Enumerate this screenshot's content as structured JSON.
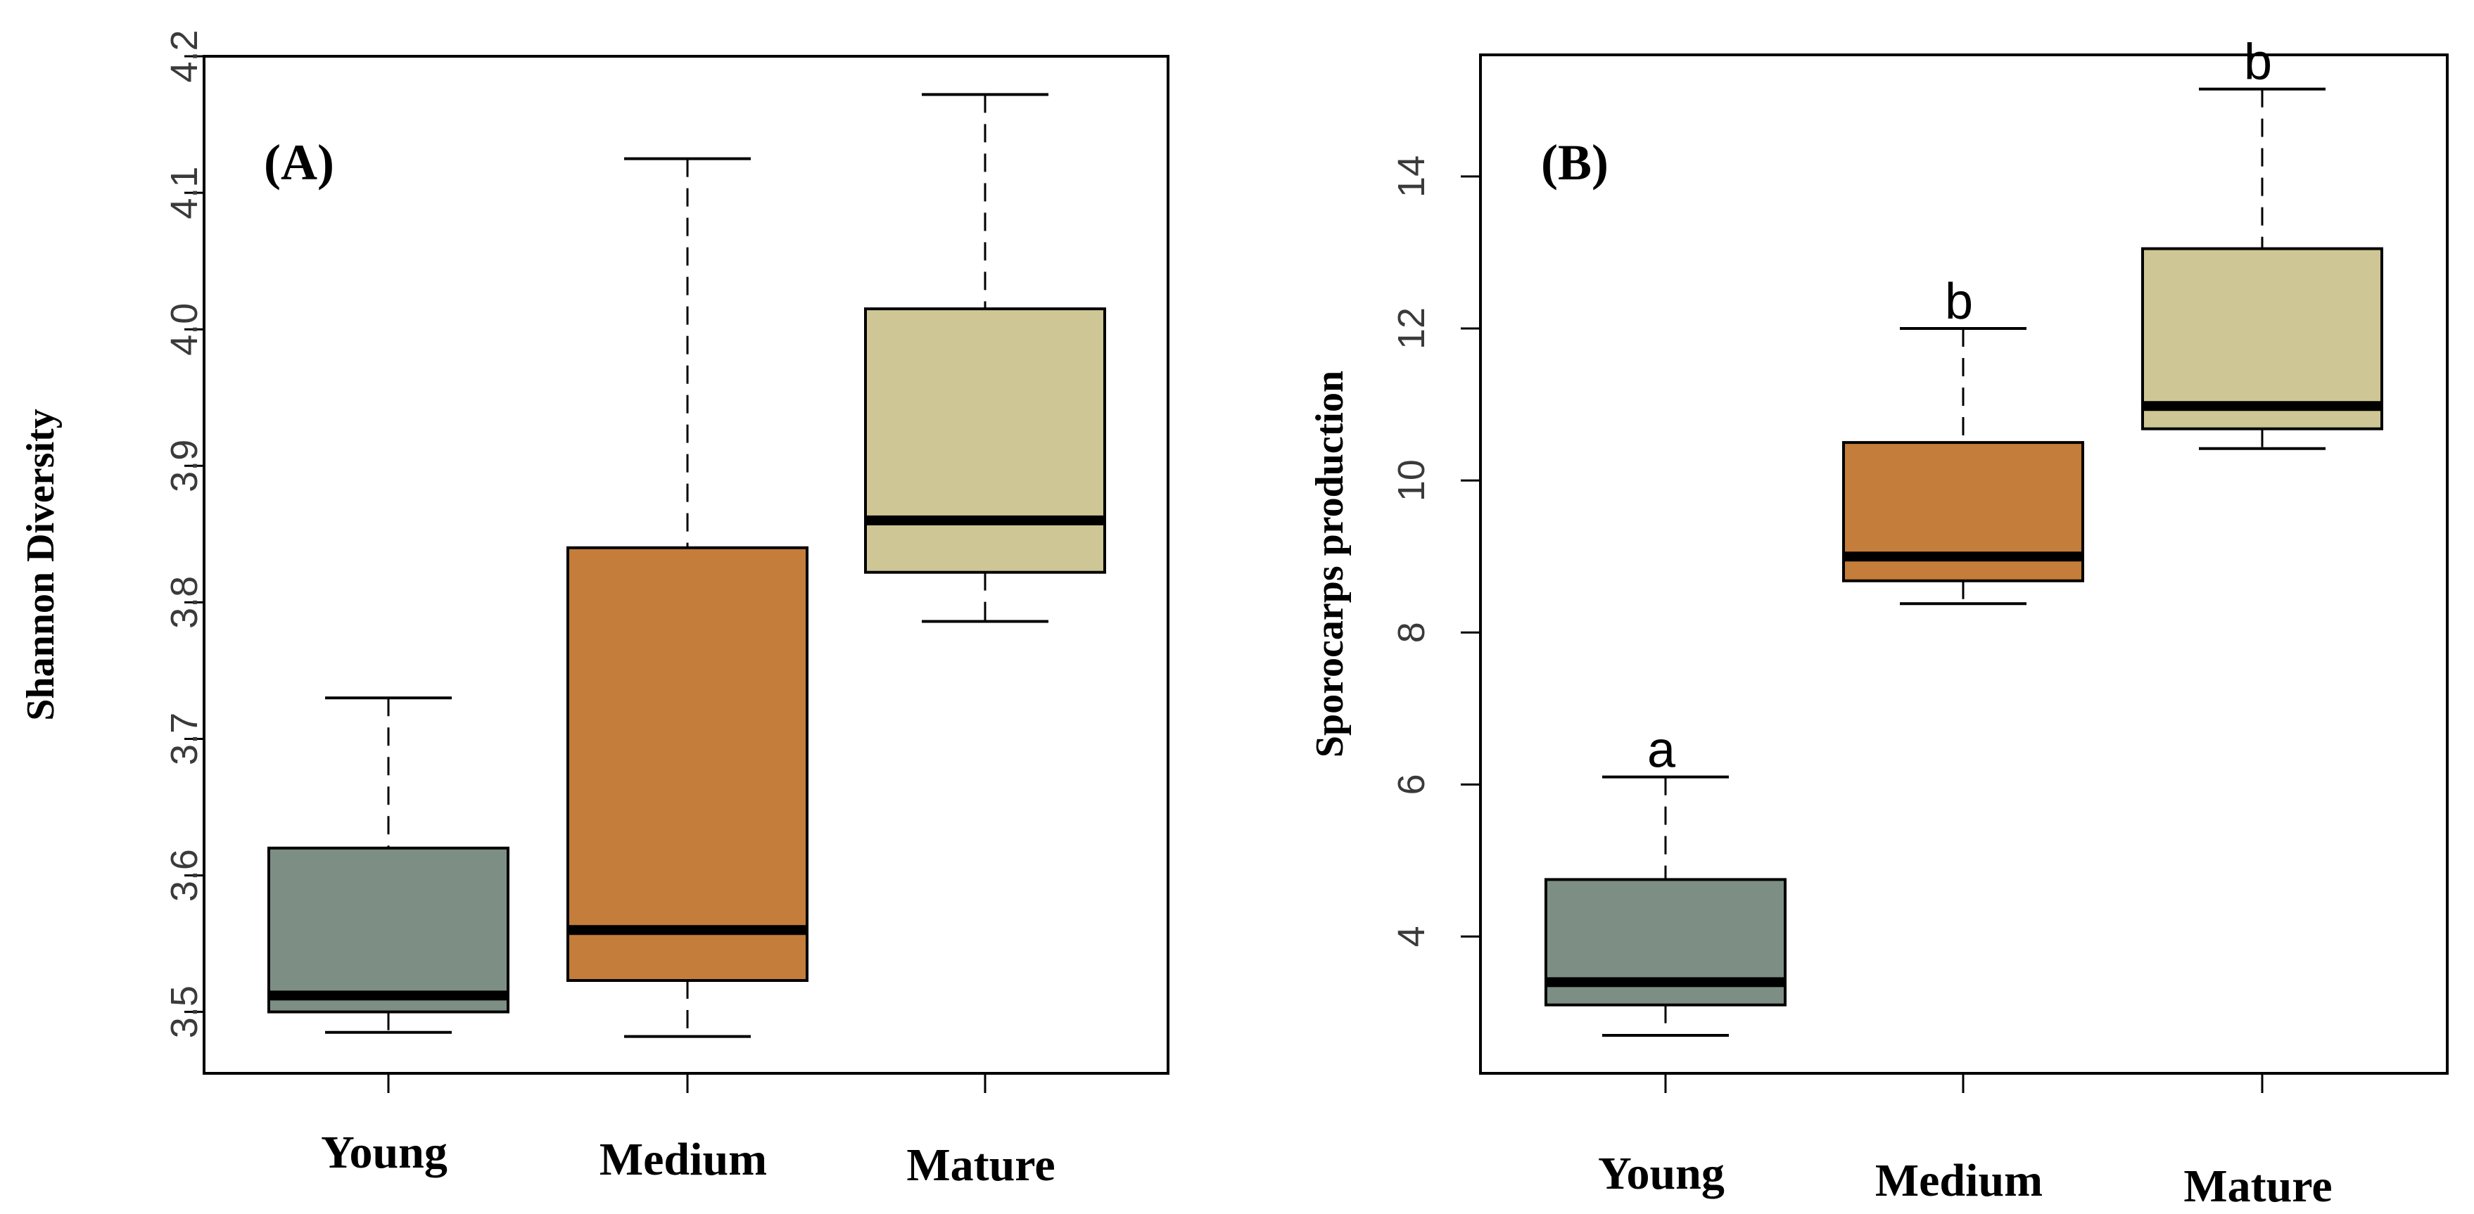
{
  "chart_data": [
    {
      "type": "boxplot",
      "panel_label": "(A)",
      "ylabel": "Shannon Diversity",
      "xlabel": "",
      "ylim": [
        3.455,
        4.2
      ],
      "yticks": [
        3.5,
        3.6,
        3.7,
        3.8,
        3.9,
        4.0,
        4.1,
        4.2
      ],
      "ytick_labels": [
        "3.5",
        "3.6",
        "3.7",
        "3.8",
        "3.9",
        "4.0",
        "4.1",
        "4.2"
      ],
      "categories": [
        "Young",
        "Medium",
        "Mature"
      ],
      "boxes": [
        {
          "category": "Young",
          "min": 3.485,
          "q1": 3.5,
          "median": 3.512,
          "q3": 3.62,
          "max": 3.73,
          "color": "#7D8F85",
          "sig_letter": ""
        },
        {
          "category": "Medium",
          "min": 3.482,
          "q1": 3.523,
          "median": 3.56,
          "q3": 3.84,
          "max": 4.125,
          "color": "#C47D3A",
          "sig_letter": ""
        },
        {
          "category": "Mature",
          "min": 3.786,
          "q1": 3.822,
          "median": 3.86,
          "q3": 4.015,
          "max": 4.172,
          "color": "#CEC795",
          "sig_letter": ""
        }
      ]
    },
    {
      "type": "boxplot",
      "panel_label": "(B)",
      "ylabel": "Sporocarps production",
      "xlabel": "",
      "ylim": [
        2.2,
        15.6
      ],
      "yticks": [
        4,
        6,
        8,
        10,
        12,
        14
      ],
      "ytick_labels": [
        "4",
        "6",
        "8",
        "10",
        "12",
        "14"
      ],
      "categories": [
        "Young",
        "Medium",
        "Mature"
      ],
      "boxes": [
        {
          "category": "Young",
          "min": 2.7,
          "q1": 3.1,
          "median": 3.4,
          "q3": 4.75,
          "max": 6.1,
          "color": "#7D8F85",
          "sig_letter": "a"
        },
        {
          "category": "Medium",
          "min": 8.38,
          "q1": 8.68,
          "median": 9.0,
          "q3": 10.5,
          "max": 12.0,
          "color": "#C47D3A",
          "sig_letter": "b"
        },
        {
          "category": "Mature",
          "min": 10.42,
          "q1": 10.68,
          "median": 10.98,
          "q3": 13.05,
          "max": 15.15,
          "color": "#CEC795",
          "sig_letter": "b"
        }
      ]
    }
  ]
}
